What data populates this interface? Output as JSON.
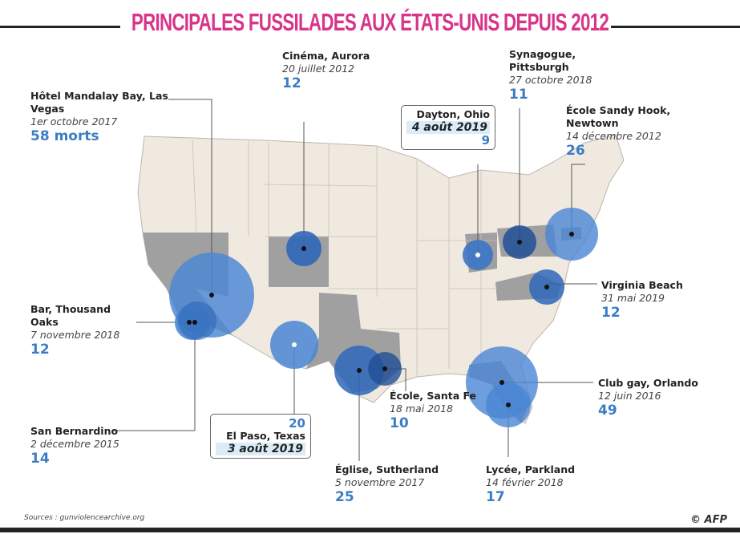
{
  "title": "PRINCIPALES FUSSILADES AUX ÉTATS-UNIS DEPUIS 2012",
  "colors": {
    "accent": "#d8358a",
    "number": "#3b7dc4",
    "circle": "#4a86d4",
    "circle_dark": "#1f4f96",
    "land": "#efe9e0",
    "highlight": "#a0a0a0"
  },
  "events": [
    {
      "id": "mandalay",
      "name": "Hôtel Mandalay Bay, Las Vegas",
      "date": "1er octobre 2017",
      "deaths": 58,
      "deaths_text": "58 morts"
    },
    {
      "id": "aurora",
      "name": "Cinéma, Aurora",
      "date": "20 juillet 2012",
      "deaths": 12,
      "deaths_text": "12"
    },
    {
      "id": "pittsburgh",
      "name": "Synagogue, Pittsburgh",
      "date": "27 octobre 2018",
      "deaths": 11,
      "deaths_text": "11"
    },
    {
      "id": "sandyhook",
      "name": "École Sandy Hook, Newtown",
      "date": "14 décembre 2012",
      "deaths": 26,
      "deaths_text": "26"
    },
    {
      "id": "dayton",
      "name": "Dayton, Ohio",
      "date": "4 août 2019",
      "deaths": 9,
      "deaths_text": "9"
    },
    {
      "id": "virginia",
      "name": "Virginia Beach",
      "date": "31 mai 2019",
      "deaths": 12,
      "deaths_text": "12"
    },
    {
      "id": "thousandoaks",
      "name": "Bar, Thousand Oaks",
      "date": "7 novembre 2018",
      "deaths": 12,
      "deaths_text": "12"
    },
    {
      "id": "sanbernardino",
      "name": "San Bernardino",
      "date": "2 décembre 2015",
      "deaths": 14,
      "deaths_text": "14"
    },
    {
      "id": "elpaso",
      "name": "El Paso, Texas",
      "date": "3 août 2019",
      "deaths": 20,
      "deaths_text": "20"
    },
    {
      "id": "santafe",
      "name": "École, Santa Fe",
      "date": "18 mai 2018",
      "deaths": 10,
      "deaths_text": "10"
    },
    {
      "id": "sutherland",
      "name": "Église, Sutherland",
      "date": "5 novembre 2017",
      "deaths": 25,
      "deaths_text": "25"
    },
    {
      "id": "parkland",
      "name": "Lycée, Parkland",
      "date": "14 février 2018",
      "deaths": 17,
      "deaths_text": "17"
    },
    {
      "id": "orlando",
      "name": "Club gay, Orlando",
      "date": "12 juin 2016",
      "deaths": 49,
      "deaths_text": "49"
    }
  ],
  "sources": "Sources : gunviolencearchive.org",
  "credit": "© AFP"
}
